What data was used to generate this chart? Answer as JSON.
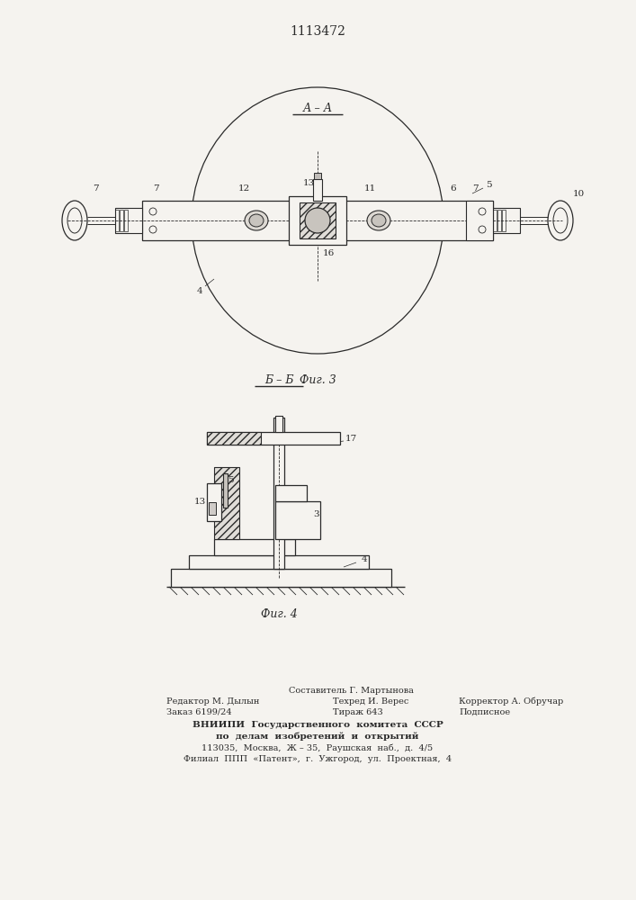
{
  "title": "1113472",
  "fig3_label": "А – А",
  "fig3_caption": "Фиг. 3",
  "fig4_label": "Б – Б",
  "fig4_caption": "Фиг. 4",
  "bg_color": "#f5f3ef",
  "line_color": "#2a2a2a",
  "footer_col1_line1": "Редактор М. Дылын",
  "footer_col1_line2": "Заказ 6199/24",
  "footer_col2_line0": "Составитель Г. Мартынова",
  "footer_col2_line1": "Техред И. Верес",
  "footer_col2_line2": "Тираж 643",
  "footer_col3_line1": "Корректор А. Обручар",
  "footer_col3_line2": "Подписное",
  "footer_vniipи_1": "ВНИИПИ  Государственного  комитета  СССР",
  "footer_vniipи_2": "по  делам  изобретений  и  открытий",
  "footer_vniipи_3": "113035,  Москва,  Ж – 35,  Раушская  наб.,  д.  4/5",
  "footer_vniipи_4": "Филиал  ППП  «Патент»,  г.  Ужгород,  ул.  Проектная,  4"
}
